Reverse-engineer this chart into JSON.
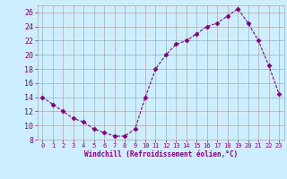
{
  "x": [
    0,
    1,
    2,
    3,
    4,
    5,
    6,
    7,
    8,
    9,
    10,
    11,
    12,
    13,
    14,
    15,
    16,
    17,
    18,
    19,
    20,
    21,
    22,
    23
  ],
  "y": [
    14,
    13,
    12,
    11,
    10.5,
    9.5,
    9,
    8.5,
    8.5,
    9.5,
    14,
    18,
    20,
    21.5,
    22,
    23,
    24,
    24.5,
    25.5,
    26.5,
    24.5,
    22,
    18.5,
    14.5
  ],
  "xlabel": "Windchill (Refroidissement éolien,°C)",
  "ylim": [
    8,
    27
  ],
  "xlim": [
    -0.5,
    23.5
  ],
  "yticks": [
    8,
    10,
    12,
    14,
    16,
    18,
    20,
    22,
    24,
    26
  ],
  "xticks": [
    0,
    1,
    2,
    3,
    4,
    5,
    6,
    7,
    8,
    9,
    10,
    11,
    12,
    13,
    14,
    15,
    16,
    17,
    18,
    19,
    20,
    21,
    22,
    23
  ],
  "line_color": "#800080",
  "marker": "D",
  "marker_size": 2.5,
  "bg_color": "#cceeff",
  "grid_color": "#aaaaaa",
  "label_color": "#800080",
  "tick_color": "#800080",
  "font": "monospace"
}
